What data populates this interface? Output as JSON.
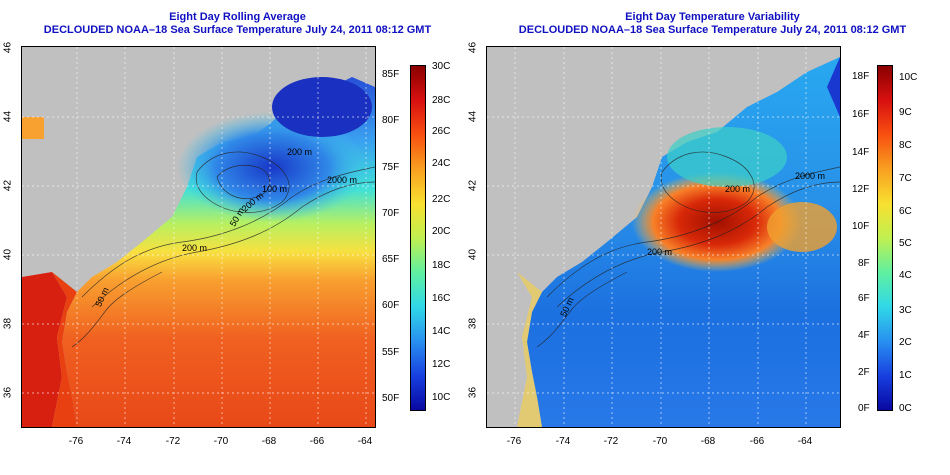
{
  "panels": [
    {
      "title_line1": "Eight Day Rolling Average",
      "title_line2": "DECLOUDED NOAA–18 Sea Surface Temperature July 24, 2011 08:12 GMT",
      "lat_ticks": [
        "46",
        "44",
        "42",
        "40",
        "38",
        "36"
      ],
      "lon_ticks": [
        "-76",
        "-74",
        "-72",
        "-70",
        "-68",
        "-66",
        "-64"
      ],
      "contour_labels": [
        "50 m",
        "200 m",
        "2000 m",
        "200 m",
        "50 m",
        "200 m",
        "100 m"
      ],
      "colorbar_left_ticks": [
        "85F",
        "80F",
        "75F",
        "70F",
        "65F",
        "60F",
        "55F",
        "50F"
      ],
      "colorbar_right_ticks": [
        "30C",
        "28C",
        "26C",
        "24C",
        "22C",
        "20C",
        "18C",
        "16C",
        "14C",
        "12C",
        "10C"
      ]
    },
    {
      "title_line1": "Eight Day Temperature Variability",
      "title_line2": "DECLOUDED NOAA–18 Sea Surface Temperature July 24, 2011 08:12 GMT",
      "lat_ticks": [
        "46",
        "44",
        "42",
        "40",
        "38",
        "36"
      ],
      "lon_ticks": [
        "-76",
        "-74",
        "-72",
        "-70",
        "-68",
        "-66",
        "-64"
      ],
      "contour_labels": [
        "50 m",
        "200 m",
        "2000 m",
        "200 m"
      ],
      "colorbar_left_ticks": [
        "18F",
        "16F",
        "14F",
        "12F",
        "10F",
        "8F",
        "6F",
        "4F",
        "2F",
        "0F"
      ],
      "colorbar_right_ticks": [
        "10C",
        "9C",
        "8C",
        "7C",
        "6C",
        "5C",
        "4C",
        "3C",
        "2C",
        "1C",
        "0C"
      ]
    }
  ],
  "colors": {
    "title": "#1010c0",
    "land": "#c0c0c0"
  }
}
